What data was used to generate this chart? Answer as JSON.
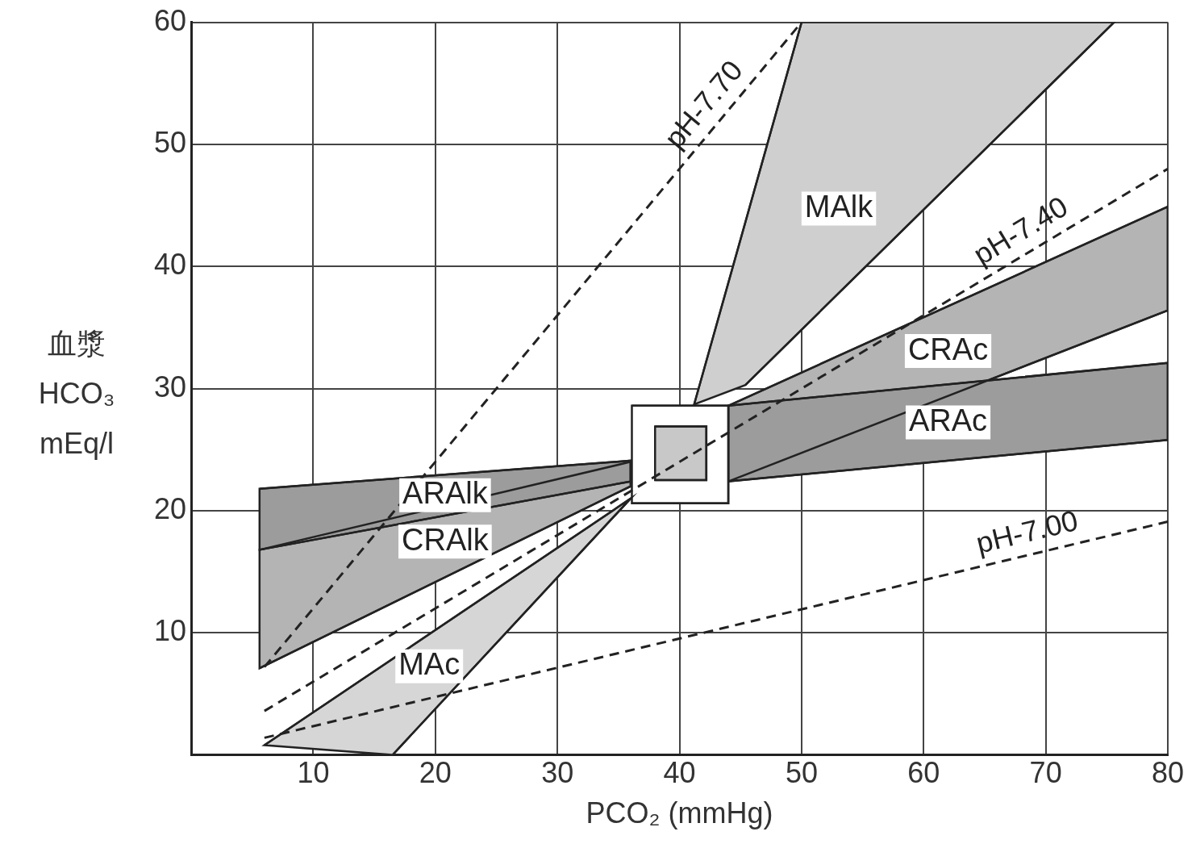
{
  "chart_data": {
    "type": "line",
    "xlabel": "PCO₂ (mmHg)",
    "ylabel": "血漿\nHCO₃\nmEq/l",
    "xlim": [
      0,
      80
    ],
    "xticks": [
      10,
      20,
      30,
      40,
      50,
      60,
      70,
      80
    ],
    "ylim": [
      0,
      60
    ],
    "yticks": [
      10,
      20,
      30,
      40,
      50,
      60
    ],
    "grid": true,
    "line_style": "dashed",
    "series": [
      {
        "type": "area",
        "name": "MAlk",
        "color": "#cfcfcf",
        "x": [
          41.2,
          50,
          75.6,
          45.4
        ],
        "values": [
          28.7,
          60,
          60,
          30.3
        ]
      },
      {
        "type": "area",
        "name": "MAc",
        "color": "#d6d6d6",
        "x": [
          6,
          36,
          16.5
        ],
        "values": [
          0.8,
          21,
          0
        ]
      },
      {
        "type": "area",
        "name": "CRAlk",
        "color": "#b4b4b4",
        "x": [
          5.6,
          36,
          36,
          5.6
        ],
        "values": [
          16.8,
          24,
          22,
          7.1
        ]
      },
      {
        "type": "area",
        "name": "ARAlk",
        "color": "#9c9c9c",
        "x": [
          5.6,
          36,
          36,
          5.6
        ],
        "values": [
          21.8,
          24.1,
          22.4,
          16.8
        ]
      },
      {
        "type": "area",
        "name": "CRAc",
        "color": "#b4b4b4",
        "x": [
          44,
          80,
          80,
          44
        ],
        "values": [
          28.6,
          44.9,
          36.4,
          22.4
        ]
      },
      {
        "type": "area",
        "name": "ARAc",
        "color": "#9c9c9c",
        "x": [
          44,
          80,
          80,
          44
        ],
        "values": [
          28.6,
          32.1,
          25.8,
          22.4
        ]
      },
      {
        "type": "area",
        "color": "#ffffff",
        "x": [
          36.1,
          44,
          44,
          36.1
        ],
        "values": [
          20.6,
          20.6,
          28.6,
          28.6
        ]
      },
      {
        "type": "area",
        "color": "#c8c8c8",
        "x": [
          38,
          42.2,
          42.2,
          38
        ],
        "values": [
          22.5,
          22.5,
          26.9,
          26.9
        ]
      },
      {
        "name": "pH-7.70",
        "color": "#222222",
        "x": [
          6,
          50
        ],
        "values": [
          7.2,
          60
        ]
      },
      {
        "name": "pH-7.40",
        "color": "#222222",
        "x": [
          6,
          80
        ],
        "values": [
          3.6,
          48
        ]
      },
      {
        "name": "pH-7.00",
        "color": "#222222",
        "x": [
          6,
          80
        ],
        "values": [
          1.4,
          19.1
        ]
      }
    ]
  }
}
